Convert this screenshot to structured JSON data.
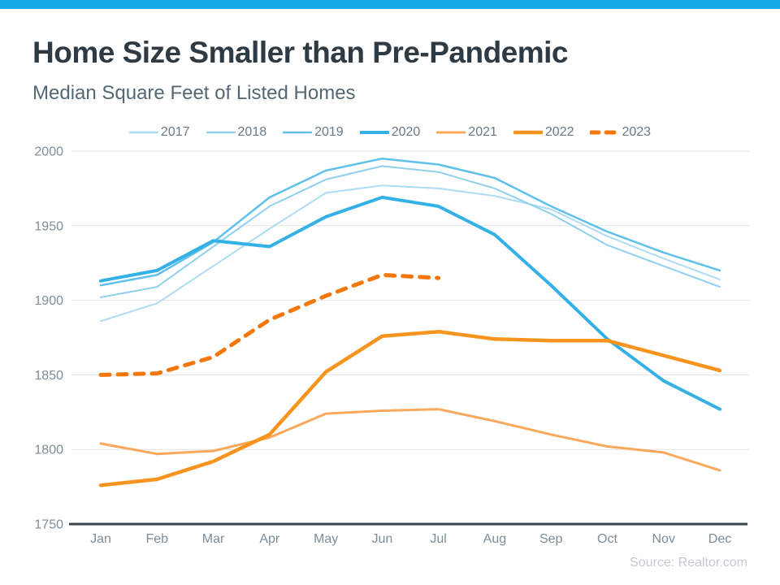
{
  "page": {
    "title": "Home Size Smaller than Pre-Pandemic",
    "subtitle": "Median Square Feet of Listed Homes",
    "source": "Source: Realtor.com"
  },
  "theme": {
    "topbar_color": "#18a9e8",
    "title_color": "#2e3a44",
    "subtitle_color": "#546874",
    "grid_color": "#e2e2e2",
    "axis_color": "#37424c",
    "tick_label_color": "#7d8d99",
    "legend_label_color": "#68798a",
    "source_color": "#c2cbd2"
  },
  "chart_data": {
    "type": "line",
    "title": "Home Size Smaller than Pre-Pandemic",
    "subtitle": "Median Square Feet of Listed Homes",
    "xlabel": "",
    "ylabel": "Median Square Feet",
    "x_categories": [
      "Jan",
      "Feb",
      "Mar",
      "Apr",
      "May",
      "Jun",
      "Jul",
      "Aug",
      "Sep",
      "Oct",
      "Nov",
      "Dec"
    ],
    "y_ticks": [
      2000,
      1950,
      1900,
      1850,
      1800,
      1750
    ],
    "ylim": [
      1750,
      2000
    ],
    "grid": true,
    "legend_position": "top",
    "series": [
      {
        "name": "2017",
        "color": "#aedcf3",
        "width": 2,
        "dash": null,
        "values": [
          1886,
          1898,
          1923,
          1948,
          1972,
          1977,
          1975,
          1970,
          1961,
          1943,
          1928,
          1914
        ]
      },
      {
        "name": "2018",
        "color": "#8fd0ee",
        "width": 2,
        "dash": null,
        "values": [
          1902,
          1909,
          1936,
          1963,
          1981,
          1990,
          1986,
          1975,
          1958,
          1937,
          1923,
          1909
        ]
      },
      {
        "name": "2019",
        "color": "#5fc0ea",
        "width": 2.5,
        "dash": null,
        "values": [
          1910,
          1917,
          1939,
          1969,
          1987,
          1995,
          1991,
          1982,
          1963,
          1946,
          1932,
          1920
        ]
      },
      {
        "name": "2020",
        "color": "#33b1e7",
        "width": 4,
        "dash": null,
        "values": [
          1913,
          1920,
          1940,
          1936,
          1956,
          1969,
          1963,
          1944,
          1910,
          1874,
          1846,
          1827
        ]
      },
      {
        "name": "2021",
        "color": "#f9a85c",
        "width": 3,
        "dash": null,
        "values": [
          1804,
          1797,
          1799,
          1808,
          1824,
          1826,
          1827,
          1819,
          1810,
          1802,
          1798,
          1786
        ]
      },
      {
        "name": "2022",
        "color": "#f7941e",
        "width": 4.5,
        "dash": null,
        "values": [
          1776,
          1780,
          1792,
          1810,
          1852,
          1876,
          1879,
          1874,
          1873,
          1873,
          1863,
          1853
        ]
      },
      {
        "name": "2023",
        "color": "#f3770b",
        "width": 5,
        "dash": "11 10",
        "values": [
          1850,
          1851,
          1862,
          1887,
          1903,
          1917,
          1915,
          null,
          null,
          null,
          null,
          null
        ]
      }
    ]
  }
}
